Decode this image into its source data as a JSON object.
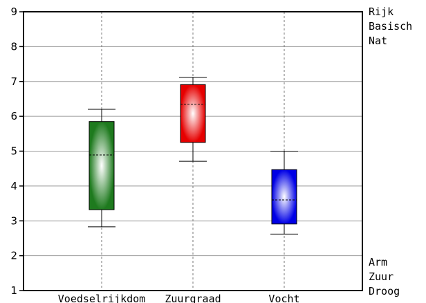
{
  "chart_data": {
    "type": "boxplot",
    "title": "",
    "xlabel": "",
    "ylabel": "",
    "ylim": [
      1,
      9
    ],
    "yticks": [
      1,
      2,
      3,
      4,
      5,
      6,
      7,
      8,
      9
    ],
    "grid": {
      "horizontal": true,
      "vertical": "dashed"
    },
    "categories": [
      "Voedselrijkdom",
      "Zuurgraad",
      "Vocht"
    ],
    "boxes": [
      {
        "category": "Voedselrijkdom",
        "whisker_low": 2.83,
        "q1": 3.32,
        "median": 4.89,
        "q3": 5.85,
        "whisker_high": 6.2,
        "color": "#1e7a1e"
      },
      {
        "category": "Zuurgraad",
        "whisker_low": 4.71,
        "q1": 5.25,
        "median": 6.35,
        "q3": 6.91,
        "whisker_high": 7.12,
        "color": "#e60000"
      },
      {
        "category": "Vocht",
        "whisker_low": 2.62,
        "q1": 2.91,
        "median": 3.6,
        "q3": 4.47,
        "whisker_high": 5.0,
        "color": "#0000e6"
      }
    ],
    "right_labels_top": [
      "Rijk",
      "Basisch",
      "Nat"
    ],
    "right_labels_bottom": [
      "Arm",
      "Zuur",
      "Droog"
    ]
  }
}
